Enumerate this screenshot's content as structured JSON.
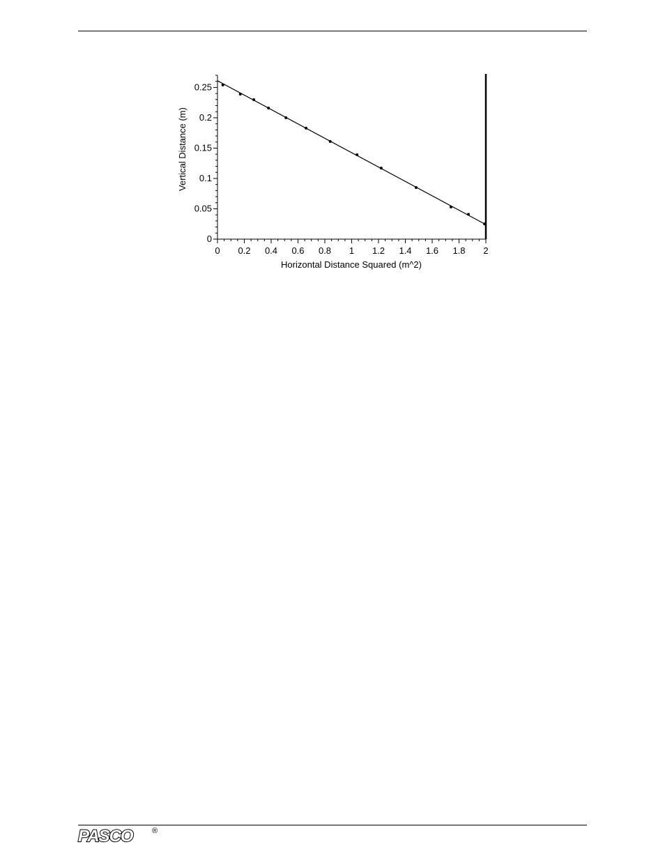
{
  "chart_data": {
    "type": "scatter",
    "xlabel": "Horizontal Distance Squared (m^2)",
    "ylabel": "Vertical Distance (m)",
    "xlim": [
      0,
      2
    ],
    "ylim": [
      0,
      0.27
    ],
    "x_ticks": [
      "0",
      "0.2",
      "0.4",
      "0.6",
      "0.8",
      "1",
      "1.2",
      "1.4",
      "1.6",
      "1.8",
      "2"
    ],
    "y_ticks": [
      "0",
      "0.05",
      "0.1",
      "0.15",
      "0.2",
      "0.25"
    ],
    "grid": false,
    "points": {
      "x": [
        0.04,
        0.17,
        0.27,
        0.38,
        0.51,
        0.66,
        0.84,
        1.04,
        1.22,
        1.48,
        1.74,
        1.87,
        1.99
      ],
      "y": [
        0.254,
        0.239,
        0.23,
        0.216,
        0.2,
        0.183,
        0.161,
        0.139,
        0.117,
        0.085,
        0.053,
        0.041,
        0.025
      ]
    },
    "fit_line": {
      "x": [
        0,
        2
      ],
      "y": [
        0.261,
        0.024
      ]
    },
    "vertical_marker_x": 2
  },
  "footer": {
    "logo_text": "PASCO",
    "registered_mark": "®"
  }
}
